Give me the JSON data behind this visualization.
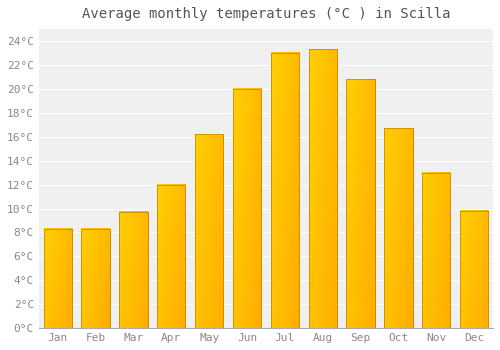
{
  "title": "Average monthly temperatures (°C ) in Scilla",
  "months": [
    "Jan",
    "Feb",
    "Mar",
    "Apr",
    "May",
    "Jun",
    "Jul",
    "Aug",
    "Sep",
    "Oct",
    "Nov",
    "Dec"
  ],
  "values": [
    8.3,
    8.3,
    9.7,
    12.0,
    16.2,
    20.0,
    23.0,
    23.3,
    20.8,
    16.7,
    13.0,
    9.8
  ],
  "bar_color_top": "#FFB300",
  "bar_color_bottom": "#F5A000",
  "bar_color_left": "#FFC84A",
  "background_color": "#ffffff",
  "plot_bg_color": "#f0f0f0",
  "grid_color": "#ffffff",
  "ylim": [
    0,
    25
  ],
  "yticks": [
    0,
    2,
    4,
    6,
    8,
    10,
    12,
    14,
    16,
    18,
    20,
    22,
    24
  ],
  "title_fontsize": 10,
  "tick_fontsize": 8,
  "figsize": [
    5.0,
    3.5
  ],
  "dpi": 100
}
